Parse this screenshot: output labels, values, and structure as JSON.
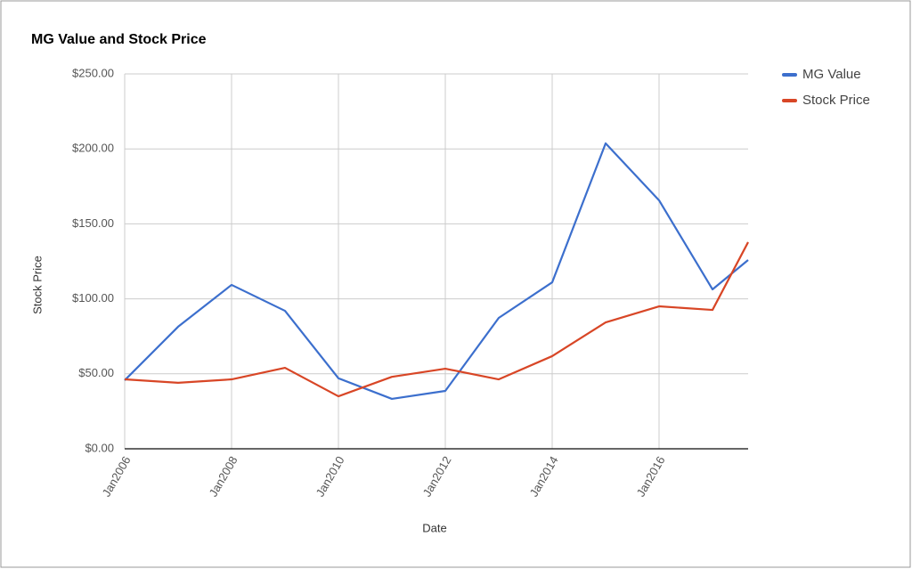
{
  "chart_data": {
    "type": "line",
    "title": "MG Value and Stock Price",
    "x_label": "Date",
    "y_label": "Stock Price",
    "x": [
      "2006-01",
      "2007-01",
      "2008-01",
      "2009-01",
      "2010-01",
      "2011-01",
      "2012-01",
      "2013-01",
      "2014-01",
      "2015-01",
      "2016-01",
      "2017-01",
      "2017-09"
    ],
    "series": [
      {
        "name": "MG Value",
        "color": "#3c6fcd",
        "values": [
          45.7,
          81.4,
          109.3,
          92,
          47,
          33.3,
          38.6,
          87.3,
          111,
          203.7,
          165.7,
          106.3,
          125.9
        ]
      },
      {
        "name": "Stock Price",
        "color": "#d84626",
        "values": [
          46.3,
          44,
          46.3,
          54,
          35,
          48,
          53.4,
          46.3,
          61.8,
          84.3,
          95,
          92.6,
          137.8
        ]
      }
    ],
    "xlim": [
      "2006-01",
      "2017-09"
    ],
    "xticks": [
      {
        "value": "2006-01",
        "label": "Jan2006"
      },
      {
        "value": "2008-01",
        "label": "Jan2008"
      },
      {
        "value": "2010-01",
        "label": "Jan2010"
      },
      {
        "value": "2012-01",
        "label": "Jan2012"
      },
      {
        "value": "2014-01",
        "label": "Jan2014"
      },
      {
        "value": "2016-01",
        "label": "Jan2016"
      }
    ],
    "ylim": [
      0,
      250
    ],
    "yticks": [
      {
        "value": 0,
        "label": "$0.00"
      },
      {
        "value": 50,
        "label": "$50.00"
      },
      {
        "value": 100,
        "label": "$100.00"
      },
      {
        "value": 150,
        "label": "$150.00"
      },
      {
        "value": 200,
        "label": "$200.00"
      },
      {
        "value": 250,
        "label": "$250.00"
      }
    ],
    "grid": true,
    "legend": "right"
  }
}
